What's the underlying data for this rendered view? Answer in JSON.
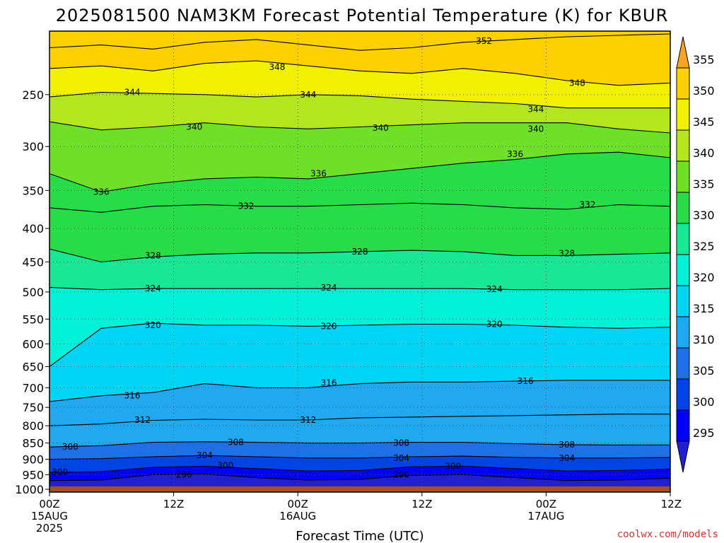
{
  "chart_data": {
    "type": "heatmap",
    "title": "2025081500 NAM3KM Forecast Potential Temperature (K) for KBUR",
    "xlabel": "Forecast Time (UTC)",
    "ylabel": "",
    "x_ticks": [
      {
        "hour": 0,
        "lines": [
          "00Z",
          "15AUG",
          "2025"
        ]
      },
      {
        "hour": 12,
        "lines": [
          "12Z"
        ]
      },
      {
        "hour": 24,
        "lines": [
          "00Z",
          "16AUG"
        ]
      },
      {
        "hour": 36,
        "lines": [
          "12Z"
        ]
      },
      {
        "hour": 48,
        "lines": [
          "00Z",
          "17AUG"
        ]
      },
      {
        "hour": 60,
        "lines": [
          "12Z"
        ]
      }
    ],
    "xlim": [
      0,
      60
    ],
    "y_pressure_ticks": [
      250,
      300,
      350,
      400,
      450,
      500,
      550,
      600,
      650,
      700,
      750,
      800,
      850,
      900,
      950,
      1000
    ],
    "y_scale": "log-pressure (top ~200 hPa, surface ~1000 hPa)",
    "surface_pressure_hPa": 990,
    "colorbar": {
      "ticks": [
        295,
        300,
        305,
        310,
        315,
        320,
        325,
        330,
        335,
        340,
        345,
        350,
        355
      ],
      "bins": [
        {
          "min": 290,
          "max": 295,
          "color": "#2020d0"
        },
        {
          "min": 295,
          "max": 300,
          "color": "#0000ff"
        },
        {
          "min": 300,
          "max": 305,
          "color": "#0044e6"
        },
        {
          "min": 305,
          "max": 310,
          "color": "#1f6fe6"
        },
        {
          "min": 310,
          "max": 315,
          "color": "#20a8f0"
        },
        {
          "min": 315,
          "max": 320,
          "color": "#00d4f5"
        },
        {
          "min": 320,
          "max": 325,
          "color": "#00f0d8"
        },
        {
          "min": 325,
          "max": 330,
          "color": "#18e896"
        },
        {
          "min": 330,
          "max": 335,
          "color": "#28dc48"
        },
        {
          "min": 335,
          "max": 340,
          "color": "#6ee028"
        },
        {
          "min": 340,
          "max": 345,
          "color": "#b4e620"
        },
        {
          "min": 345,
          "max": 350,
          "color": "#f0f000"
        },
        {
          "min": 350,
          "max": 355,
          "color": "#ffd000"
        },
        {
          "min": 355,
          "max": 360,
          "color": "#f7a420"
        }
      ]
    },
    "contours_K": [
      296,
      300,
      304,
      308,
      312,
      316,
      320,
      324,
      328,
      332,
      336,
      340,
      344,
      348,
      352
    ],
    "series": [
      {
        "theta": 352,
        "pressure": [
          212,
          210,
          213,
          208,
          206,
          210,
          214,
          212,
          208,
          206,
          204,
          203,
          202
        ],
        "hours": [
          0,
          5,
          10,
          15,
          20,
          25,
          30,
          35,
          40,
          45,
          50,
          55,
          60
        ]
      },
      {
        "theta": 348,
        "pressure": [
          228,
          226,
          230,
          224,
          222,
          226,
          230,
          232,
          228,
          232,
          238,
          242,
          240
        ],
        "hours": [
          0,
          5,
          10,
          15,
          20,
          25,
          30,
          35,
          40,
          45,
          50,
          55,
          60
        ]
      },
      {
        "theta": 344,
        "pressure": [
          252,
          248,
          249,
          250,
          252,
          250,
          251,
          254,
          256,
          258,
          262,
          262,
          262
        ],
        "hours": [
          0,
          5,
          10,
          15,
          20,
          25,
          30,
          35,
          40,
          45,
          50,
          55,
          60
        ]
      },
      {
        "theta": 340,
        "pressure": [
          275,
          283,
          280,
          276,
          280,
          282,
          280,
          278,
          276,
          276,
          276,
          282,
          286
        ],
        "hours": [
          0,
          5,
          10,
          15,
          20,
          25,
          30,
          35,
          40,
          45,
          50,
          55,
          60
        ]
      },
      {
        "theta": 336,
        "pressure": [
          330,
          352,
          342,
          336,
          334,
          336,
          330,
          324,
          318,
          314,
          308,
          306,
          312
        ],
        "hours": [
          0,
          5,
          10,
          15,
          20,
          25,
          30,
          35,
          40,
          45,
          50,
          55,
          60
        ]
      },
      {
        "theta": 332,
        "pressure": [
          372,
          378,
          370,
          368,
          370,
          370,
          368,
          366,
          368,
          372,
          374,
          368,
          370
        ],
        "hours": [
          0,
          5,
          10,
          15,
          20,
          25,
          30,
          35,
          40,
          45,
          50,
          55,
          60
        ]
      },
      {
        "theta": 328,
        "pressure": [
          430,
          450,
          442,
          438,
          436,
          436,
          434,
          432,
          434,
          440,
          440,
          438,
          436
        ],
        "hours": [
          0,
          5,
          10,
          15,
          20,
          25,
          30,
          35,
          40,
          45,
          50,
          55,
          60
        ]
      },
      {
        "theta": 324,
        "pressure": [
          492,
          496,
          494,
          494,
          494,
          494,
          494,
          494,
          494,
          496,
          496,
          496,
          494
        ],
        "hours": [
          0,
          5,
          10,
          15,
          20,
          25,
          30,
          35,
          40,
          45,
          50,
          55,
          60
        ]
      },
      {
        "theta": 320,
        "pressure": [
          650,
          568,
          558,
          562,
          562,
          564,
          562,
          560,
          560,
          562,
          566,
          568,
          566
        ],
        "hours": [
          0,
          5,
          10,
          15,
          20,
          25,
          30,
          35,
          40,
          45,
          50,
          55,
          60
        ]
      },
      {
        "theta": 316,
        "pressure": [
          735,
          720,
          712,
          690,
          700,
          700,
          690,
          686,
          686,
          684,
          682,
          682,
          682
        ],
        "hours": [
          0,
          5,
          10,
          15,
          20,
          25,
          30,
          35,
          40,
          45,
          50,
          55,
          60
        ]
      },
      {
        "theta": 312,
        "pressure": [
          800,
          795,
          785,
          782,
          784,
          784,
          778,
          776,
          774,
          772,
          770,
          768,
          768
        ],
        "hours": [
          0,
          5,
          10,
          15,
          20,
          25,
          30,
          35,
          40,
          45,
          50,
          55,
          60
        ]
      },
      {
        "theta": 308,
        "pressure": [
          862,
          858,
          848,
          846,
          848,
          850,
          850,
          848,
          848,
          852,
          855,
          856,
          856
        ],
        "hours": [
          0,
          5,
          10,
          15,
          20,
          25,
          30,
          35,
          40,
          45,
          50,
          55,
          60
        ]
      },
      {
        "theta": 304,
        "pressure": [
          900,
          898,
          892,
          888,
          892,
          896,
          896,
          892,
          890,
          894,
          896,
          896,
          894
        ],
        "hours": [
          0,
          5,
          10,
          15,
          20,
          25,
          30,
          35,
          40,
          45,
          50,
          55,
          60
        ]
      },
      {
        "theta": 300,
        "pressure": [
          942,
          940,
          926,
          922,
          930,
          938,
          936,
          924,
          922,
          930,
          938,
          936,
          932
        ],
        "hours": [
          0,
          5,
          10,
          15,
          20,
          25,
          30,
          35,
          40,
          45,
          50,
          55,
          60
        ]
      },
      {
        "theta": 296,
        "pressure": [
          970,
          968,
          950,
          948,
          960,
          968,
          966,
          952,
          950,
          960,
          970,
          968,
          962
        ],
        "hours": [
          0,
          5,
          10,
          15,
          20,
          25,
          30,
          35,
          40,
          45,
          50,
          55,
          60
        ]
      }
    ],
    "contour_labels": [
      {
        "text": "352",
        "hour": 42,
        "pressure": 207
      },
      {
        "text": "348",
        "hour": 22,
        "pressure": 227
      },
      {
        "text": "348",
        "hour": 51,
        "pressure": 240
      },
      {
        "text": "344",
        "hour": 8,
        "pressure": 248
      },
      {
        "text": "344",
        "hour": 25,
        "pressure": 250
      },
      {
        "text": "344",
        "hour": 47,
        "pressure": 263
      },
      {
        "text": "340",
        "hour": 14,
        "pressure": 280
      },
      {
        "text": "340",
        "hour": 32,
        "pressure": 281
      },
      {
        "text": "340",
        "hour": 47,
        "pressure": 282
      },
      {
        "text": "336",
        "hour": 5,
        "pressure": 352
      },
      {
        "text": "336",
        "hour": 26,
        "pressure": 330
      },
      {
        "text": "336",
        "hour": 45,
        "pressure": 308
      },
      {
        "text": "332",
        "hour": 19,
        "pressure": 370
      },
      {
        "text": "332",
        "hour": 52,
        "pressure": 368
      },
      {
        "text": "328",
        "hour": 10,
        "pressure": 440
      },
      {
        "text": "328",
        "hour": 30,
        "pressure": 434
      },
      {
        "text": "328",
        "hour": 50,
        "pressure": 437
      },
      {
        "text": "324",
        "hour": 10,
        "pressure": 494
      },
      {
        "text": "324",
        "hour": 27,
        "pressure": 493
      },
      {
        "text": "324",
        "hour": 43,
        "pressure": 495
      },
      {
        "text": "320",
        "hour": 10,
        "pressure": 562
      },
      {
        "text": "320",
        "hour": 27,
        "pressure": 564
      },
      {
        "text": "320",
        "hour": 43,
        "pressure": 560
      },
      {
        "text": "316",
        "hour": 8,
        "pressure": 720
      },
      {
        "text": "316",
        "hour": 27,
        "pressure": 688
      },
      {
        "text": "316",
        "hour": 46,
        "pressure": 684
      },
      {
        "text": "312",
        "hour": 9,
        "pressure": 784
      },
      {
        "text": "312",
        "hour": 25,
        "pressure": 784
      },
      {
        "text": "308",
        "hour": 2,
        "pressure": 862
      },
      {
        "text": "308",
        "hour": 18,
        "pressure": 848
      },
      {
        "text": "308",
        "hour": 34,
        "pressure": 850
      },
      {
        "text": "308",
        "hour": 50,
        "pressure": 855
      },
      {
        "text": "304",
        "hour": 15,
        "pressure": 888
      },
      {
        "text": "304",
        "hour": 34,
        "pressure": 896
      },
      {
        "text": "304",
        "hour": 50,
        "pressure": 896
      },
      {
        "text": "300",
        "hour": 1,
        "pressure": 942
      },
      {
        "text": "300",
        "hour": 17,
        "pressure": 920
      },
      {
        "text": "300",
        "hour": 39,
        "pressure": 922
      },
      {
        "text": "296",
        "hour": 13,
        "pressure": 950
      },
      {
        "text": "296",
        "hour": 34,
        "pressure": 950
      }
    ]
  },
  "credit": "coolwx.com/models",
  "colors": {
    "ground": "#a0522d",
    "contour_line": "#000000",
    "grid": "#555555"
  }
}
